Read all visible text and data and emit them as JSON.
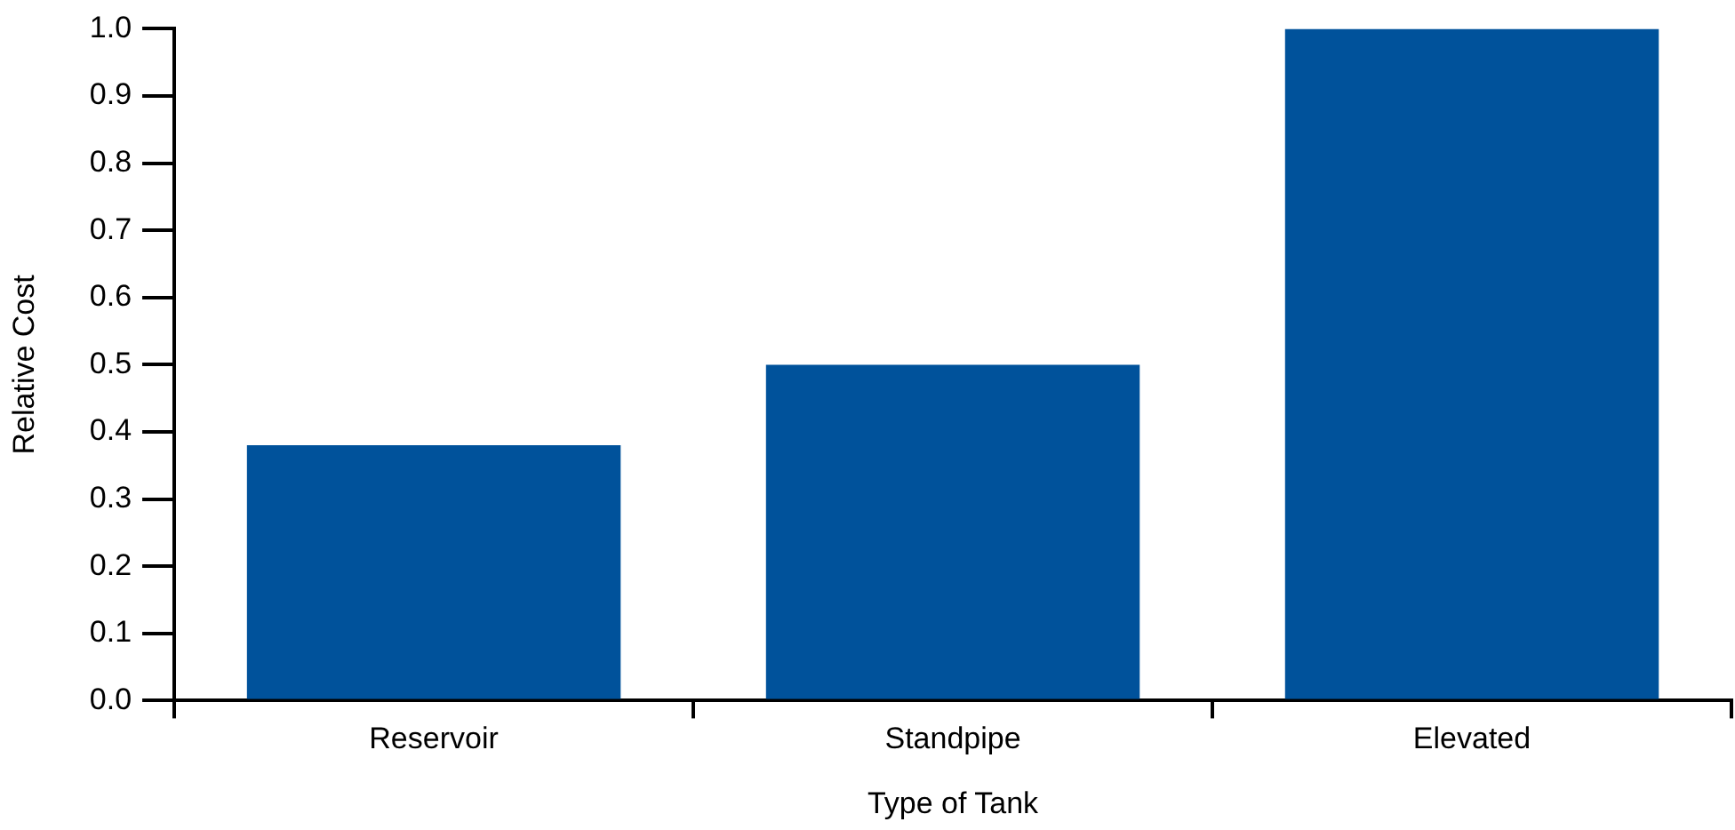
{
  "chart_data": {
    "type": "bar",
    "xlabel": "Type of Tank",
    "ylabel": "Relative Cost",
    "categories": [
      "Reservoir",
      "Standpipe",
      "Elevated"
    ],
    "values": [
      0.38,
      0.5,
      1.0
    ],
    "color": "#00529b",
    "ylim": [
      0,
      1.0
    ],
    "yticks": [
      {
        "value": 0,
        "label": "0.0"
      },
      0.1,
      0.2,
      0.3,
      0.4,
      0.5,
      0.6,
      0.7,
      0.8,
      0.9,
      {
        "value": 1,
        "label": "1.0"
      }
    ],
    "grid": false,
    "legend": false
  }
}
